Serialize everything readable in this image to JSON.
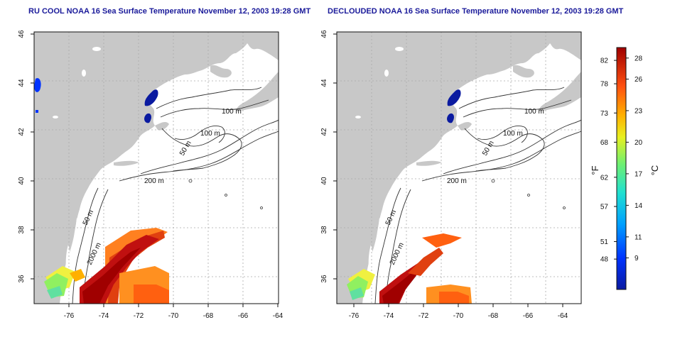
{
  "maps": [
    {
      "title": "RU COOL NOAA 16 Sea Surface Temperature November 12, 2003 19:28 GMT",
      "lon_ticks": [
        "-76",
        "-74",
        "-72",
        "-70",
        "-68",
        "-66",
        "-64"
      ],
      "lat_ticks": [
        "46",
        "44",
        "42",
        "40",
        "38",
        "36"
      ],
      "contour_labels": [
        "100 m",
        "100 m",
        "50 m",
        "200 m",
        "50 m",
        "2000 m"
      ]
    },
    {
      "title": "DECLOUDED NOAA 16 Sea Surface Temperature November 12, 2003 19:28 GMT",
      "lon_ticks": [
        "-76",
        "-74",
        "-72",
        "-70",
        "-68",
        "-66",
        "-64"
      ],
      "lat_ticks": [
        "46",
        "44",
        "42",
        "40",
        "38",
        "36"
      ],
      "contour_labels": [
        "100 m",
        "100 m",
        "50 m",
        "200 m",
        "50 m",
        "2000 m"
      ]
    }
  ],
  "colorbar": {
    "fahrenheit_label": "°F",
    "celsius_label": "°C",
    "fahrenheit_ticks": [
      "82",
      "78",
      "73",
      "68",
      "62",
      "57",
      "51",
      "48"
    ],
    "celsius_ticks": [
      "28",
      "26",
      "23",
      "20",
      "17",
      "14",
      "11",
      "9"
    ],
    "fahrenheit_values": [
      82,
      78,
      73,
      68,
      62,
      57,
      51,
      48
    ],
    "celsius_values": [
      28,
      26,
      23,
      20,
      17,
      14,
      11,
      9
    ],
    "celsius_range": [
      6,
      29
    ]
  },
  "colors": {
    "land": "#c8c8c8",
    "title": "#1a1a9a",
    "grid": "#aaaaaa"
  }
}
